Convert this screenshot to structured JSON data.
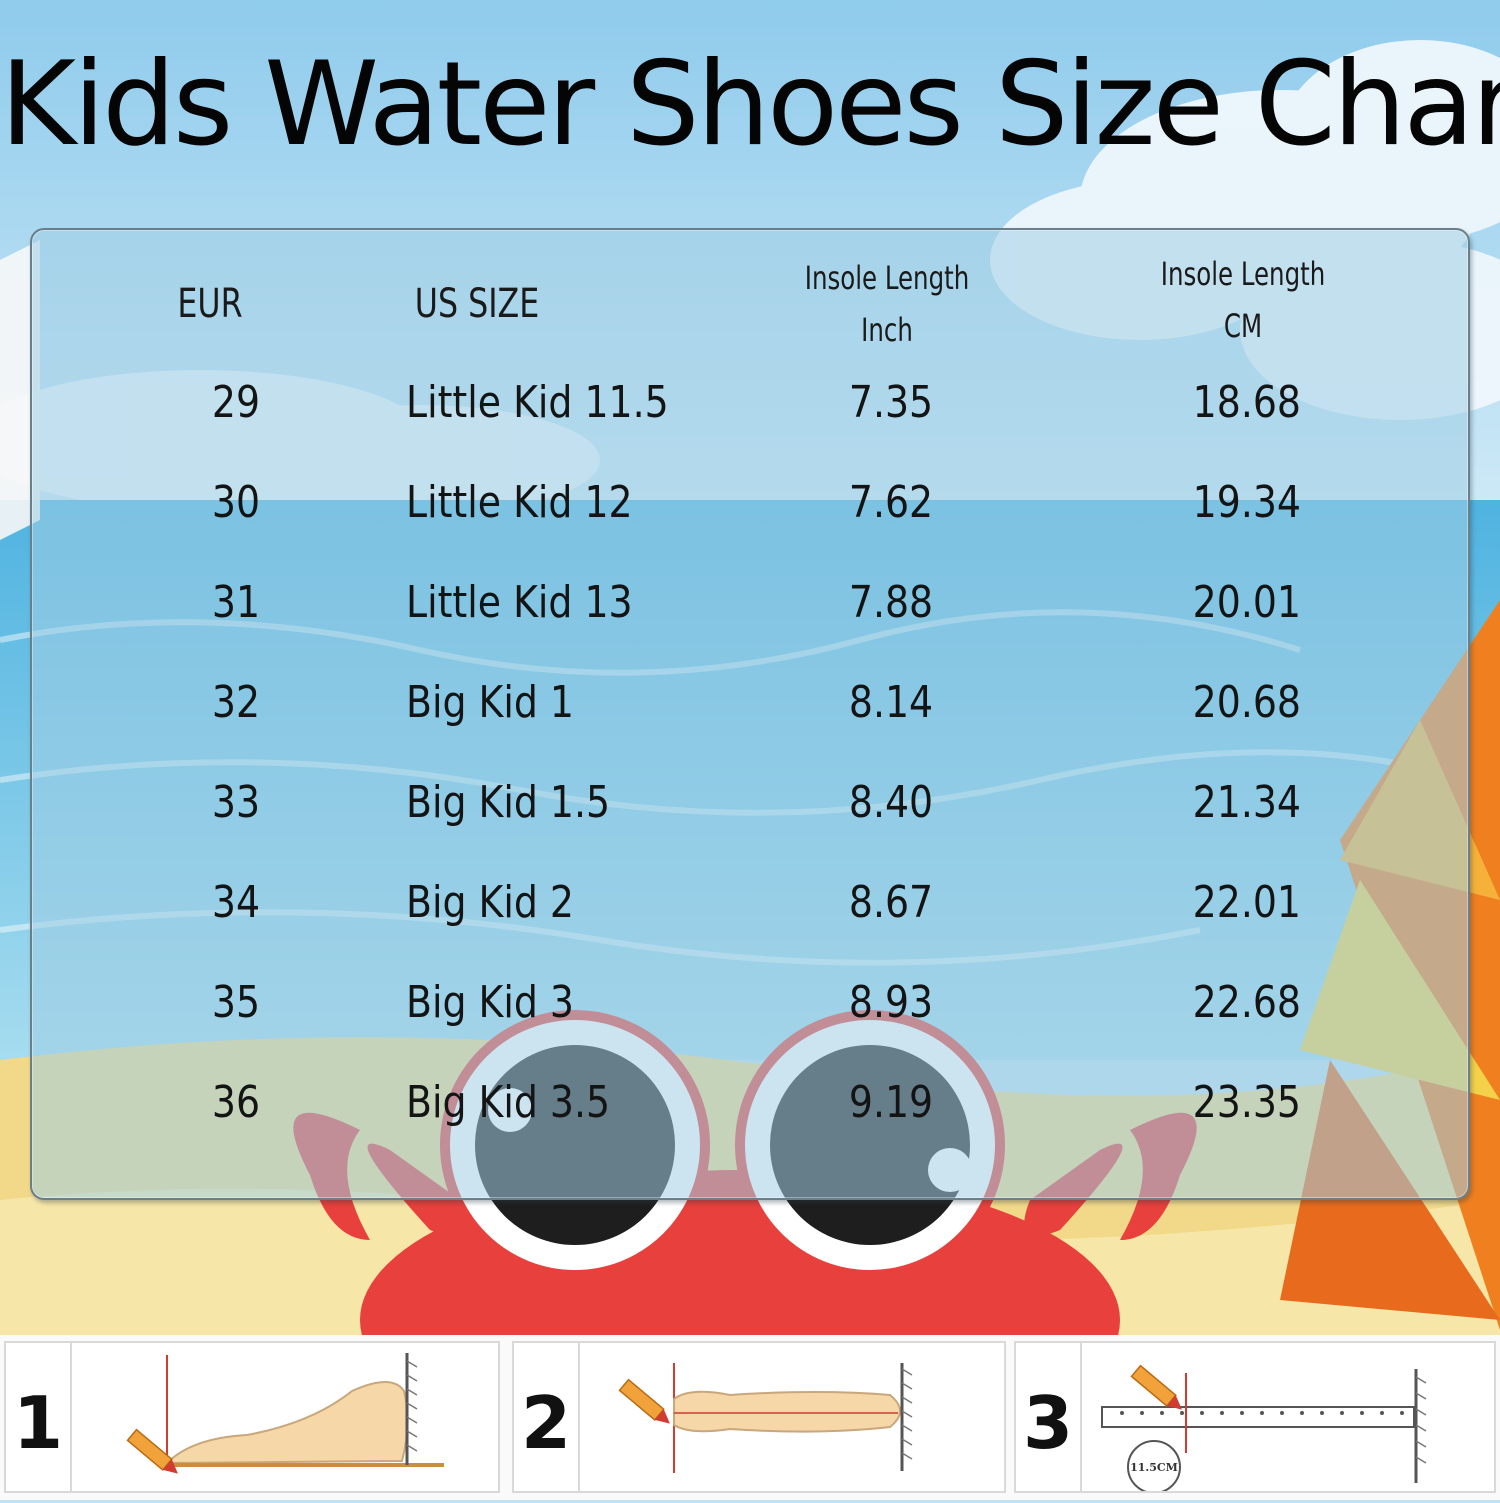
{
  "title": "Kids Water Shoes Size Chart",
  "table": {
    "headers": {
      "eur": "EUR",
      "us": "US SIZE",
      "inch_line1": "Insole Length",
      "inch_line2": "Inch",
      "cm_line1": "Insole Length",
      "cm_line2": "CM"
    },
    "rows": [
      {
        "eur": "29",
        "us": "Little Kid 11.5",
        "inch": "7.35",
        "cm": "18.68"
      },
      {
        "eur": "30",
        "us": "Little Kid 12",
        "inch": "7.62",
        "cm": "19.34"
      },
      {
        "eur": "31",
        "us": "Little Kid 13",
        "inch": "7.88",
        "cm": "20.01"
      },
      {
        "eur": "32",
        "us": "Big Kid 1",
        "inch": "8.14",
        "cm": "20.68"
      },
      {
        "eur": "33",
        "us": "Big Kid 1.5",
        "inch": "8.40",
        "cm": "21.34"
      },
      {
        "eur": "34",
        "us": "Big Kid 2",
        "inch": "8.67",
        "cm": "22.01"
      },
      {
        "eur": "35",
        "us": "Big Kid 3",
        "inch": "8.93",
        "cm": "22.68"
      },
      {
        "eur": "36",
        "us": "Big Kid 3.5",
        "inch": "9.19",
        "cm": "23.35"
      }
    ]
  },
  "steps": [
    {
      "number": "1",
      "illustration": "foot-side-measure-icon"
    },
    {
      "number": "2",
      "illustration": "foot-top-measure-icon"
    },
    {
      "number": "3",
      "illustration": "ruler-measure-icon",
      "ruler_label": "11.5CM"
    }
  ],
  "colors": {
    "sky": "#a9d8f0",
    "sea": "#6cc0e0",
    "sand": "#f3dd8a",
    "crab": "#e8403c",
    "umbrella_orange": "#f08a1c"
  }
}
